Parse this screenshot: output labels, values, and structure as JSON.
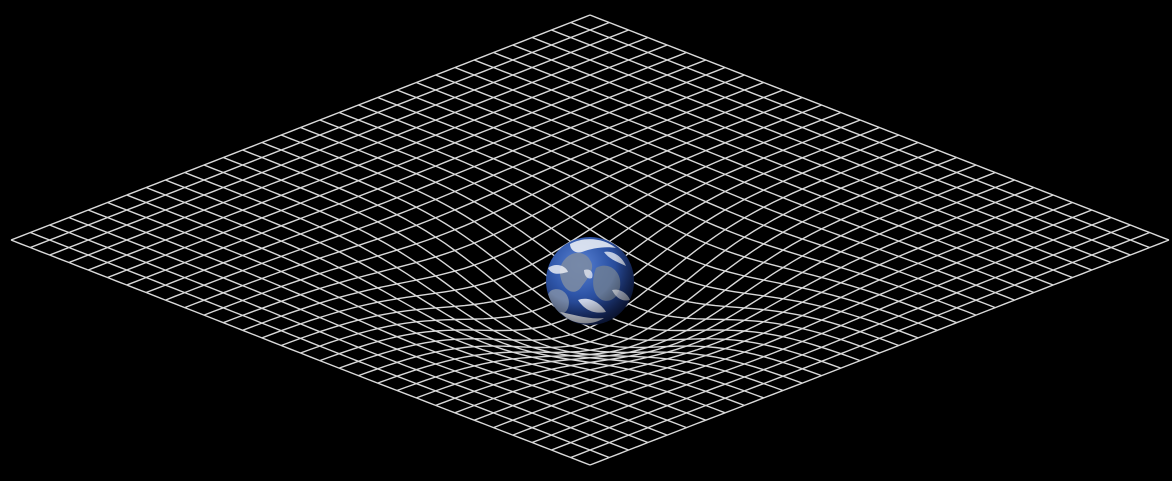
{
  "scene": {
    "subject": "earth-on-spacetime-grid",
    "background_color": "#000000",
    "grid_color": "#d9d9d9",
    "earth_colors": {
      "ocean": "#2e55a8",
      "ocean_dark": "#0f1e52",
      "land": "#6f7f96",
      "cloud": "#f2f4f8"
    }
  }
}
